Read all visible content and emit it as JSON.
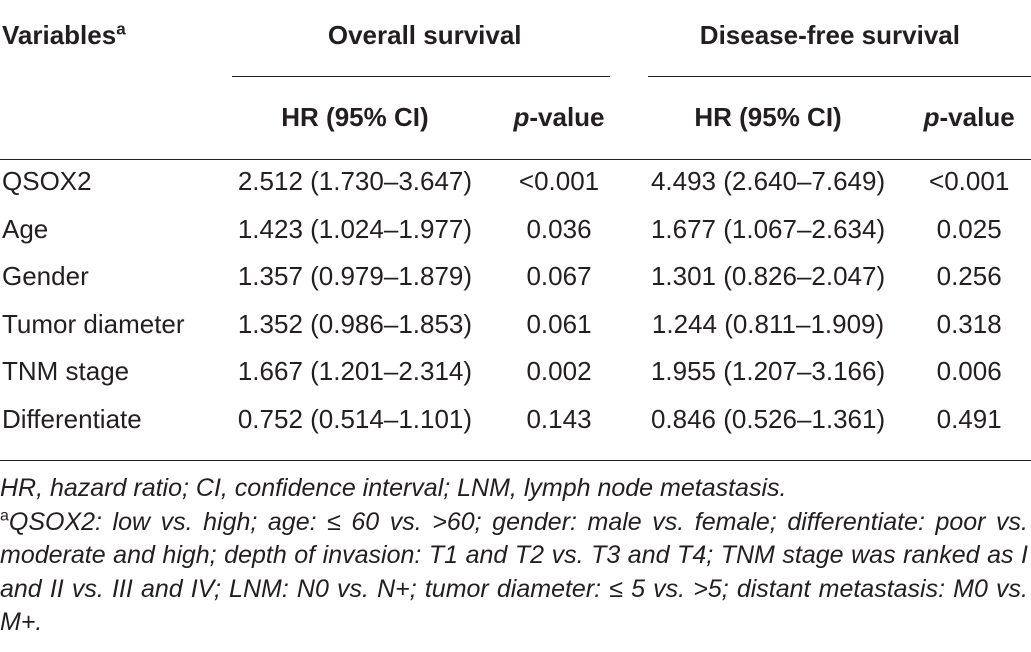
{
  "table": {
    "header": {
      "variables_label": "Variables",
      "variables_marker": "a",
      "group_os": "Overall survival",
      "group_dfs": "Disease-free survival",
      "hr_label": "HR (95% CI)",
      "p_prefix": "p",
      "p_suffix": "-value"
    },
    "rows": [
      {
        "variable": "QSOX2",
        "os_hr": "2.512 (1.730–3.647)",
        "os_p": "<0.001",
        "dfs_hr": "4.493 (2.640–7.649)",
        "dfs_p": "<0.001"
      },
      {
        "variable": "Age",
        "os_hr": "1.423 (1.024–1.977)",
        "os_p": "0.036",
        "dfs_hr": "1.677 (1.067–2.634)",
        "dfs_p": "0.025"
      },
      {
        "variable": "Gender",
        "os_hr": "1.357 (0.979–1.879)",
        "os_p": "0.067",
        "dfs_hr": "1.301 (0.826–2.047)",
        "dfs_p": "0.256"
      },
      {
        "variable": "Tumor diameter",
        "os_hr": "1.352 (0.986–1.853)",
        "os_p": "0.061",
        "dfs_hr": "1.244 (0.811–1.909)",
        "dfs_p": "0.318"
      },
      {
        "variable": "TNM stage",
        "os_hr": "1.667 (1.201–2.314)",
        "os_p": "0.002",
        "dfs_hr": "1.955 (1.207–3.166)",
        "dfs_p": "0.006"
      },
      {
        "variable": "Differentiate",
        "os_hr": "0.752 (0.514–1.101)",
        "os_p": "0.143",
        "dfs_hr": "0.846 (0.526–1.361)",
        "dfs_p": "0.491"
      }
    ]
  },
  "footnotes": {
    "abbreviations": "HR, hazard ratio; CI, confidence interval; LNM, lymph node metastasis.",
    "marker": "a",
    "definitions": "QSOX2: low vs. high; age: ≤ 60 vs. >60; gender: male vs. female; differentiate: poor vs. moderate and high; depth of invasion: T1 and T2 vs. T3 and T4; TNM stage was ranked as I and II vs. III and IV; LNM: N0 vs. N+; tumor diameter: ≤ 5 vs. >5; distant metastasis: M0 vs. M+."
  }
}
